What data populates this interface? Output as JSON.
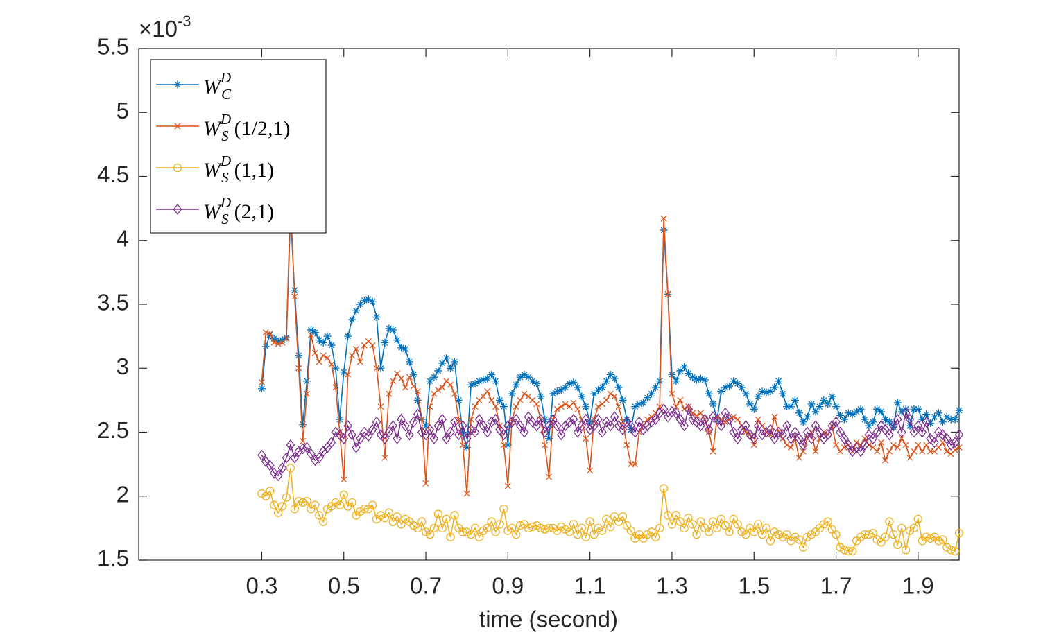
{
  "chart_data": {
    "type": "line",
    "xlabel": "time (second)",
    "y_exponent": {
      "base": "×10",
      "power": "-3"
    },
    "xlim": [
      0,
      2
    ],
    "xticks": [
      0.3,
      0.5,
      0.7,
      0.9,
      1.1,
      1.3,
      1.5,
      1.7,
      1.9
    ],
    "ylim": [
      1.5,
      5.5
    ],
    "yticks": [
      1.5,
      2,
      2.5,
      3,
      3.5,
      4,
      4.5,
      5,
      5.5
    ],
    "legend": "upper left",
    "x": [
      0.3,
      0.31,
      0.32,
      0.33,
      0.34,
      0.35,
      0.36,
      0.37,
      0.38,
      0.39,
      0.4,
      0.41,
      0.42,
      0.43,
      0.44,
      0.45,
      0.46,
      0.47,
      0.48,
      0.49,
      0.5,
      0.51,
      0.52,
      0.53,
      0.54,
      0.55,
      0.56,
      0.57,
      0.58,
      0.59,
      0.6,
      0.61,
      0.62,
      0.63,
      0.64,
      0.65,
      0.66,
      0.67,
      0.68,
      0.69,
      0.7,
      0.71,
      0.72,
      0.73,
      0.74,
      0.75,
      0.76,
      0.77,
      0.78,
      0.79,
      0.8,
      0.81,
      0.82,
      0.83,
      0.84,
      0.85,
      0.86,
      0.87,
      0.88,
      0.89,
      0.9,
      0.91,
      0.92,
      0.93,
      0.94,
      0.95,
      0.96,
      0.97,
      0.98,
      0.99,
      1,
      1.01,
      1.02,
      1.03,
      1.04,
      1.05,
      1.06,
      1.07,
      1.08,
      1.09,
      1.1,
      1.11,
      1.12,
      1.13,
      1.14,
      1.15,
      1.16,
      1.17,
      1.18,
      1.19,
      1.2,
      1.21,
      1.22,
      1.23,
      1.24,
      1.25,
      1.26,
      1.27,
      1.28,
      1.29,
      1.3,
      1.31,
      1.32,
      1.33,
      1.34,
      1.35,
      1.36,
      1.37,
      1.38,
      1.39,
      1.4,
      1.41,
      1.42,
      1.43,
      1.44,
      1.45,
      1.46,
      1.47,
      1.48,
      1.49,
      1.5,
      1.51,
      1.52,
      1.53,
      1.54,
      1.55,
      1.56,
      1.57,
      1.58,
      1.59,
      1.6,
      1.61,
      1.62,
      1.63,
      1.64,
      1.65,
      1.66,
      1.67,
      1.68,
      1.69,
      1.7,
      1.71,
      1.72,
      1.73,
      1.74,
      1.75,
      1.76,
      1.77,
      1.78,
      1.79,
      1.8,
      1.81,
      1.82,
      1.83,
      1.84,
      1.85,
      1.86,
      1.87,
      1.88,
      1.89,
      1.9,
      1.91,
      1.92,
      1.93,
      1.94,
      1.95,
      1.96,
      1.97,
      1.98,
      1.99,
      2
    ],
    "series": [
      {
        "symbol": "W",
        "sup": "D",
        "sub": "C",
        "marker": "asterisk",
        "color": "#0072BD",
        "values": [
          2.84,
          3.17,
          3.26,
          3.23,
          3.21,
          3.22,
          3.24,
          4.2,
          3.61,
          3.1,
          2.56,
          2.9,
          3.3,
          3.28,
          3.22,
          3.2,
          3.25,
          3.18,
          3.0,
          2.6,
          2.97,
          3.25,
          3.38,
          3.45,
          3.5,
          3.53,
          3.54,
          3.52,
          3.4,
          3.0,
          3.2,
          3.31,
          3.3,
          3.22,
          3.16,
          3.15,
          3.05,
          2.95,
          2.75,
          2.6,
          2.55,
          2.9,
          2.93,
          2.98,
          3.04,
          3.08,
          3.0,
          3.05,
          2.75,
          2.5,
          2.38,
          2.87,
          2.88,
          2.9,
          2.91,
          2.92,
          2.95,
          2.9,
          2.75,
          2.7,
          2.4,
          2.8,
          2.87,
          2.93,
          2.95,
          2.93,
          2.9,
          2.88,
          2.78,
          2.6,
          2.45,
          2.8,
          2.82,
          2.83,
          2.85,
          2.88,
          2.89,
          2.85,
          2.78,
          2.7,
          2.58,
          2.8,
          2.83,
          2.85,
          2.9,
          2.95,
          2.92,
          2.85,
          2.75,
          2.6,
          2.52,
          2.7,
          2.72,
          2.73,
          2.77,
          2.8,
          2.85,
          2.9,
          4.08,
          3.58,
          2.95,
          2.9,
          2.98,
          3.01,
          2.96,
          2.93,
          2.91,
          2.92,
          2.91,
          2.8,
          2.72,
          2.6,
          2.82,
          2.85,
          2.86,
          2.9,
          2.88,
          2.85,
          2.8,
          2.72,
          2.68,
          2.78,
          2.82,
          2.81,
          2.82,
          2.85,
          2.9,
          2.8,
          2.7,
          2.7,
          2.75,
          2.65,
          2.58,
          2.62,
          2.72,
          2.66,
          2.7,
          2.75,
          2.72,
          2.78,
          2.7,
          2.63,
          2.6,
          2.65,
          2.64,
          2.66,
          2.68,
          2.6,
          2.55,
          2.58,
          2.68,
          2.66,
          2.6,
          2.58,
          2.54,
          2.73,
          2.66,
          2.68,
          2.55,
          2.68,
          2.68,
          2.6,
          2.64,
          2.57,
          2.62,
          2.65,
          2.58,
          2.62,
          2.6,
          2.6,
          2.67
        ]
      },
      {
        "symbol": "W",
        "sup": "D",
        "sub": "S",
        "param": "(1/2,1)",
        "marker": "x",
        "color": "#D95319",
        "values": [
          2.89,
          3.28,
          3.27,
          3.2,
          3.19,
          3.2,
          3.23,
          4.3,
          3.56,
          3.0,
          2.43,
          2.8,
          3.26,
          3.12,
          3.05,
          3.1,
          3.08,
          3.03,
          2.85,
          2.5,
          2.13,
          2.95,
          3.1,
          3.15,
          3.05,
          3.18,
          3.21,
          3.18,
          3.0,
          2.7,
          2.3,
          2.8,
          2.9,
          2.96,
          2.92,
          2.85,
          2.93,
          2.86,
          2.82,
          2.6,
          2.1,
          2.7,
          2.8,
          2.83,
          2.85,
          2.9,
          2.87,
          2.8,
          2.6,
          2.4,
          2.02,
          2.6,
          2.7,
          2.75,
          2.78,
          2.82,
          2.75,
          2.7,
          2.55,
          2.4,
          2.08,
          2.6,
          2.7,
          2.75,
          2.8,
          2.78,
          2.75,
          2.72,
          2.6,
          2.4,
          2.15,
          2.6,
          2.68,
          2.7,
          2.72,
          2.7,
          2.73,
          2.68,
          2.6,
          2.45,
          2.2,
          2.6,
          2.7,
          2.72,
          2.75,
          2.8,
          2.78,
          2.7,
          2.58,
          2.4,
          2.25,
          2.25,
          2.5,
          2.55,
          2.6,
          2.62,
          2.65,
          2.7,
          4.17,
          3.58,
          2.8,
          2.7,
          2.75,
          2.68,
          2.7,
          2.65,
          2.63,
          2.65,
          2.6,
          2.5,
          2.35,
          2.62,
          2.6,
          2.58,
          2.6,
          2.62,
          2.6,
          2.55,
          2.5,
          2.48,
          2.4,
          2.6,
          2.55,
          2.5,
          2.48,
          2.62,
          2.5,
          2.45,
          2.4,
          2.38,
          2.45,
          2.3,
          2.35,
          2.45,
          2.5,
          2.35,
          2.45,
          2.5,
          2.48,
          2.55,
          2.4,
          2.35,
          2.38,
          2.4,
          2.35,
          2.42,
          2.4,
          2.45,
          2.4,
          2.38,
          2.35,
          2.42,
          2.28,
          2.35,
          2.4,
          2.38,
          2.45,
          2.4,
          2.3,
          2.35,
          2.4,
          2.35,
          2.4,
          2.35,
          2.35,
          2.38,
          2.42,
          2.35,
          2.33,
          2.36,
          2.38
        ]
      },
      {
        "symbol": "W",
        "sup": "D",
        "sub": "S",
        "param": "(1,1)",
        "marker": "circle",
        "color": "#EDB120",
        "values": [
          2.02,
          2.0,
          2.04,
          1.93,
          1.87,
          1.92,
          1.99,
          2.22,
          1.9,
          1.96,
          1.95,
          1.96,
          1.9,
          1.93,
          1.85,
          1.8,
          1.9,
          1.92,
          1.95,
          1.93,
          2.01,
          1.92,
          1.95,
          1.85,
          1.88,
          1.9,
          1.9,
          1.93,
          1.82,
          1.85,
          1.83,
          1.87,
          1.8,
          1.84,
          1.78,
          1.82,
          1.8,
          1.77,
          1.75,
          1.8,
          1.72,
          1.7,
          1.75,
          1.86,
          1.75,
          1.82,
          1.68,
          1.85,
          1.75,
          1.72,
          1.72,
          1.7,
          1.75,
          1.68,
          1.73,
          1.75,
          1.8,
          1.72,
          1.78,
          1.9,
          1.73,
          1.75,
          1.7,
          1.77,
          1.78,
          1.75,
          1.76,
          1.77,
          1.75,
          1.74,
          1.75,
          1.75,
          1.73,
          1.76,
          1.74,
          1.72,
          1.78,
          1.7,
          1.75,
          1.68,
          1.8,
          1.7,
          1.75,
          1.73,
          1.82,
          1.76,
          1.84,
          1.8,
          1.84,
          1.77,
          1.73,
          1.67,
          1.7,
          1.67,
          1.7,
          1.72,
          1.68,
          1.75,
          2.06,
          1.85,
          1.78,
          1.85,
          1.8,
          1.75,
          1.83,
          1.78,
          1.7,
          1.8,
          1.75,
          1.72,
          1.8,
          1.75,
          1.82,
          1.77,
          1.72,
          1.82,
          1.78,
          1.72,
          1.7,
          1.75,
          1.72,
          1.78,
          1.7,
          1.75,
          1.65,
          1.72,
          1.7,
          1.68,
          1.7,
          1.65,
          1.68,
          1.66,
          1.6,
          1.68,
          1.7,
          1.72,
          1.75,
          1.78,
          1.8,
          1.74,
          1.7,
          1.6,
          1.58,
          1.57,
          1.57,
          1.65,
          1.68,
          1.7,
          1.7,
          1.71,
          1.66,
          1.64,
          1.68,
          1.8,
          1.7,
          1.62,
          1.75,
          1.58,
          1.73,
          1.75,
          1.82,
          1.65,
          1.68,
          1.67,
          1.68,
          1.65,
          1.66,
          1.6,
          1.58,
          1.57,
          1.71
        ]
      },
      {
        "symbol": "W",
        "sup": "D",
        "sub": "S",
        "param": "(2,1)",
        "marker": "diamond",
        "color": "#7E2F8E",
        "values": [
          2.32,
          2.27,
          2.24,
          2.18,
          2.16,
          2.22,
          2.3,
          2.4,
          2.3,
          2.35,
          2.37,
          2.38,
          2.33,
          2.28,
          2.3,
          2.35,
          2.38,
          2.42,
          2.5,
          2.48,
          2.45,
          2.55,
          2.48,
          2.38,
          2.45,
          2.5,
          2.47,
          2.52,
          2.58,
          2.48,
          2.45,
          2.5,
          2.55,
          2.45,
          2.6,
          2.55,
          2.48,
          2.58,
          2.64,
          2.5,
          2.48,
          2.52,
          2.45,
          2.55,
          2.6,
          2.45,
          2.5,
          2.58,
          2.48,
          2.55,
          2.45,
          2.52,
          2.5,
          2.6,
          2.55,
          2.5,
          2.58,
          2.6,
          2.52,
          2.48,
          2.55,
          2.58,
          2.6,
          2.55,
          2.5,
          2.62,
          2.58,
          2.55,
          2.6,
          2.5,
          2.55,
          2.6,
          2.55,
          2.48,
          2.55,
          2.58,
          2.6,
          2.5,
          2.55,
          2.6,
          2.52,
          2.55,
          2.6,
          2.5,
          2.58,
          2.55,
          2.62,
          2.55,
          2.52,
          2.58,
          2.55,
          2.5,
          2.58,
          2.52,
          2.55,
          2.58,
          2.6,
          2.65,
          2.68,
          2.62,
          2.66,
          2.65,
          2.6,
          2.55,
          2.68,
          2.6,
          2.58,
          2.55,
          2.6,
          2.52,
          2.62,
          2.6,
          2.55,
          2.65,
          2.6,
          2.5,
          2.45,
          2.52,
          2.55,
          2.48,
          2.45,
          2.55,
          2.48,
          2.5,
          2.52,
          2.45,
          2.5,
          2.48,
          2.55,
          2.45,
          2.5,
          2.45,
          2.4,
          2.5,
          2.45,
          2.55,
          2.5,
          2.45,
          2.48,
          2.55,
          2.58,
          2.5,
          2.45,
          2.4,
          2.35,
          2.38,
          2.35,
          2.4,
          2.48,
          2.45,
          2.5,
          2.55,
          2.52,
          2.48,
          2.55,
          2.6,
          2.5,
          2.65,
          2.6,
          2.5,
          2.55,
          2.5,
          2.58,
          2.45,
          2.42,
          2.5,
          2.48,
          2.45,
          2.4,
          2.42,
          2.48
        ]
      }
    ]
  }
}
